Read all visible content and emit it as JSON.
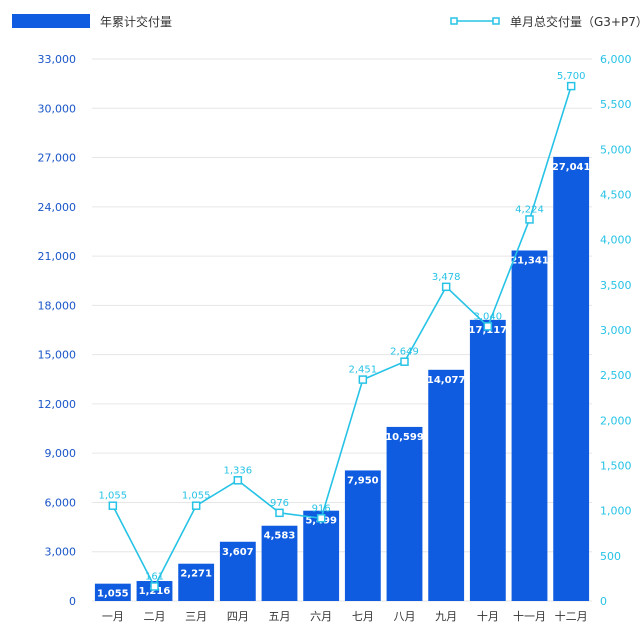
{
  "colors": {
    "bar": "#0f5ce0",
    "line": "#27c3e6",
    "left_axis": "#1a56c8",
    "grid": "#e6e6e6"
  },
  "chart_data": {
    "type": "bar",
    "categories": [
      "一月",
      "二月",
      "三月",
      "四月",
      "五月",
      "六月",
      "七月",
      "八月",
      "九月",
      "十月",
      "十一月",
      "十二月"
    ],
    "series": [
      {
        "name": "年累计交付量",
        "type": "bar",
        "axis": "left",
        "values": [
          1055,
          1216,
          2271,
          3607,
          4583,
          5499,
          7950,
          10599,
          14077,
          17117,
          21341,
          27041
        ],
        "labels": [
          "1,055",
          "1,216",
          "2,271",
          "3,607",
          "4,583",
          "5,499",
          "7,950",
          "10,599",
          "14,077",
          "17,117",
          "21,341",
          "27,041"
        ]
      },
      {
        "name": "单月总交付量（G3+P7）",
        "type": "line",
        "axis": "right",
        "values": [
          1055,
          161,
          1055,
          1336,
          976,
          916,
          2451,
          2649,
          3478,
          3040,
          4224,
          5700
        ],
        "labels": [
          "1,055",
          "161",
          "1,055",
          "1,336",
          "976",
          "916",
          "2,451",
          "2,649",
          "3,478",
          "3,040",
          "4,224",
          "5,700"
        ]
      }
    ],
    "y_left": {
      "range": [
        0,
        33000
      ],
      "ticks": [
        "0",
        "3,000",
        "6,000",
        "9,000",
        "12,000",
        "15,000",
        "18,000",
        "21,000",
        "24,000",
        "27,000",
        "30,000",
        "33,000"
      ]
    },
    "y_right": {
      "range": [
        0,
        6000
      ],
      "ticks": [
        "0",
        "500",
        "1,000",
        "1,500",
        "2,000",
        "2,500",
        "3,000",
        "3,500",
        "4,000",
        "4,500",
        "5,000",
        "5,500",
        "6,000"
      ]
    },
    "grid": true,
    "legend": "top"
  }
}
